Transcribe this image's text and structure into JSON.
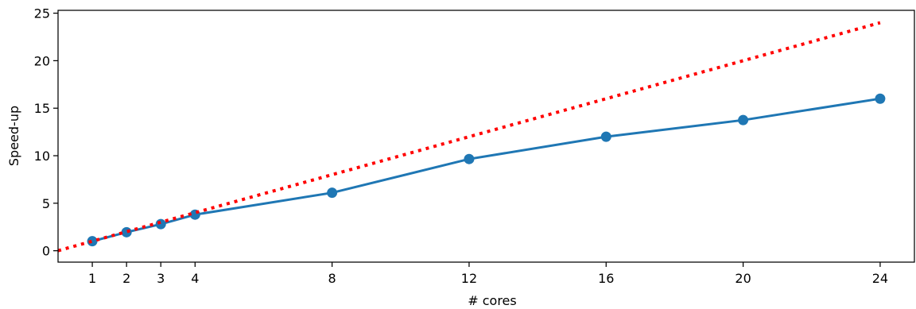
{
  "chart_data": {
    "type": "line",
    "title": "",
    "xlabel": "# cores",
    "ylabel": "Speed-up",
    "xlim": [
      0,
      25
    ],
    "ylim": [
      -1.2,
      25.3
    ],
    "xticks": [
      1,
      2,
      3,
      4,
      8,
      12,
      16,
      20,
      24
    ],
    "yticks": [
      0,
      5,
      10,
      15,
      20,
      25
    ],
    "grid": false,
    "series": [
      {
        "style": "solid-line-with-markers",
        "color": "#1f77b4",
        "x": [
          1,
          2,
          3,
          4,
          8,
          12,
          16,
          20,
          24
        ],
        "y": [
          1.0,
          1.95,
          2.8,
          3.8,
          6.1,
          9.65,
          12.0,
          13.75,
          16.0
        ]
      },
      {
        "style": "dotted-line",
        "color": "#ff0000",
        "x": [
          0,
          24
        ],
        "y": [
          0,
          24
        ]
      }
    ]
  }
}
